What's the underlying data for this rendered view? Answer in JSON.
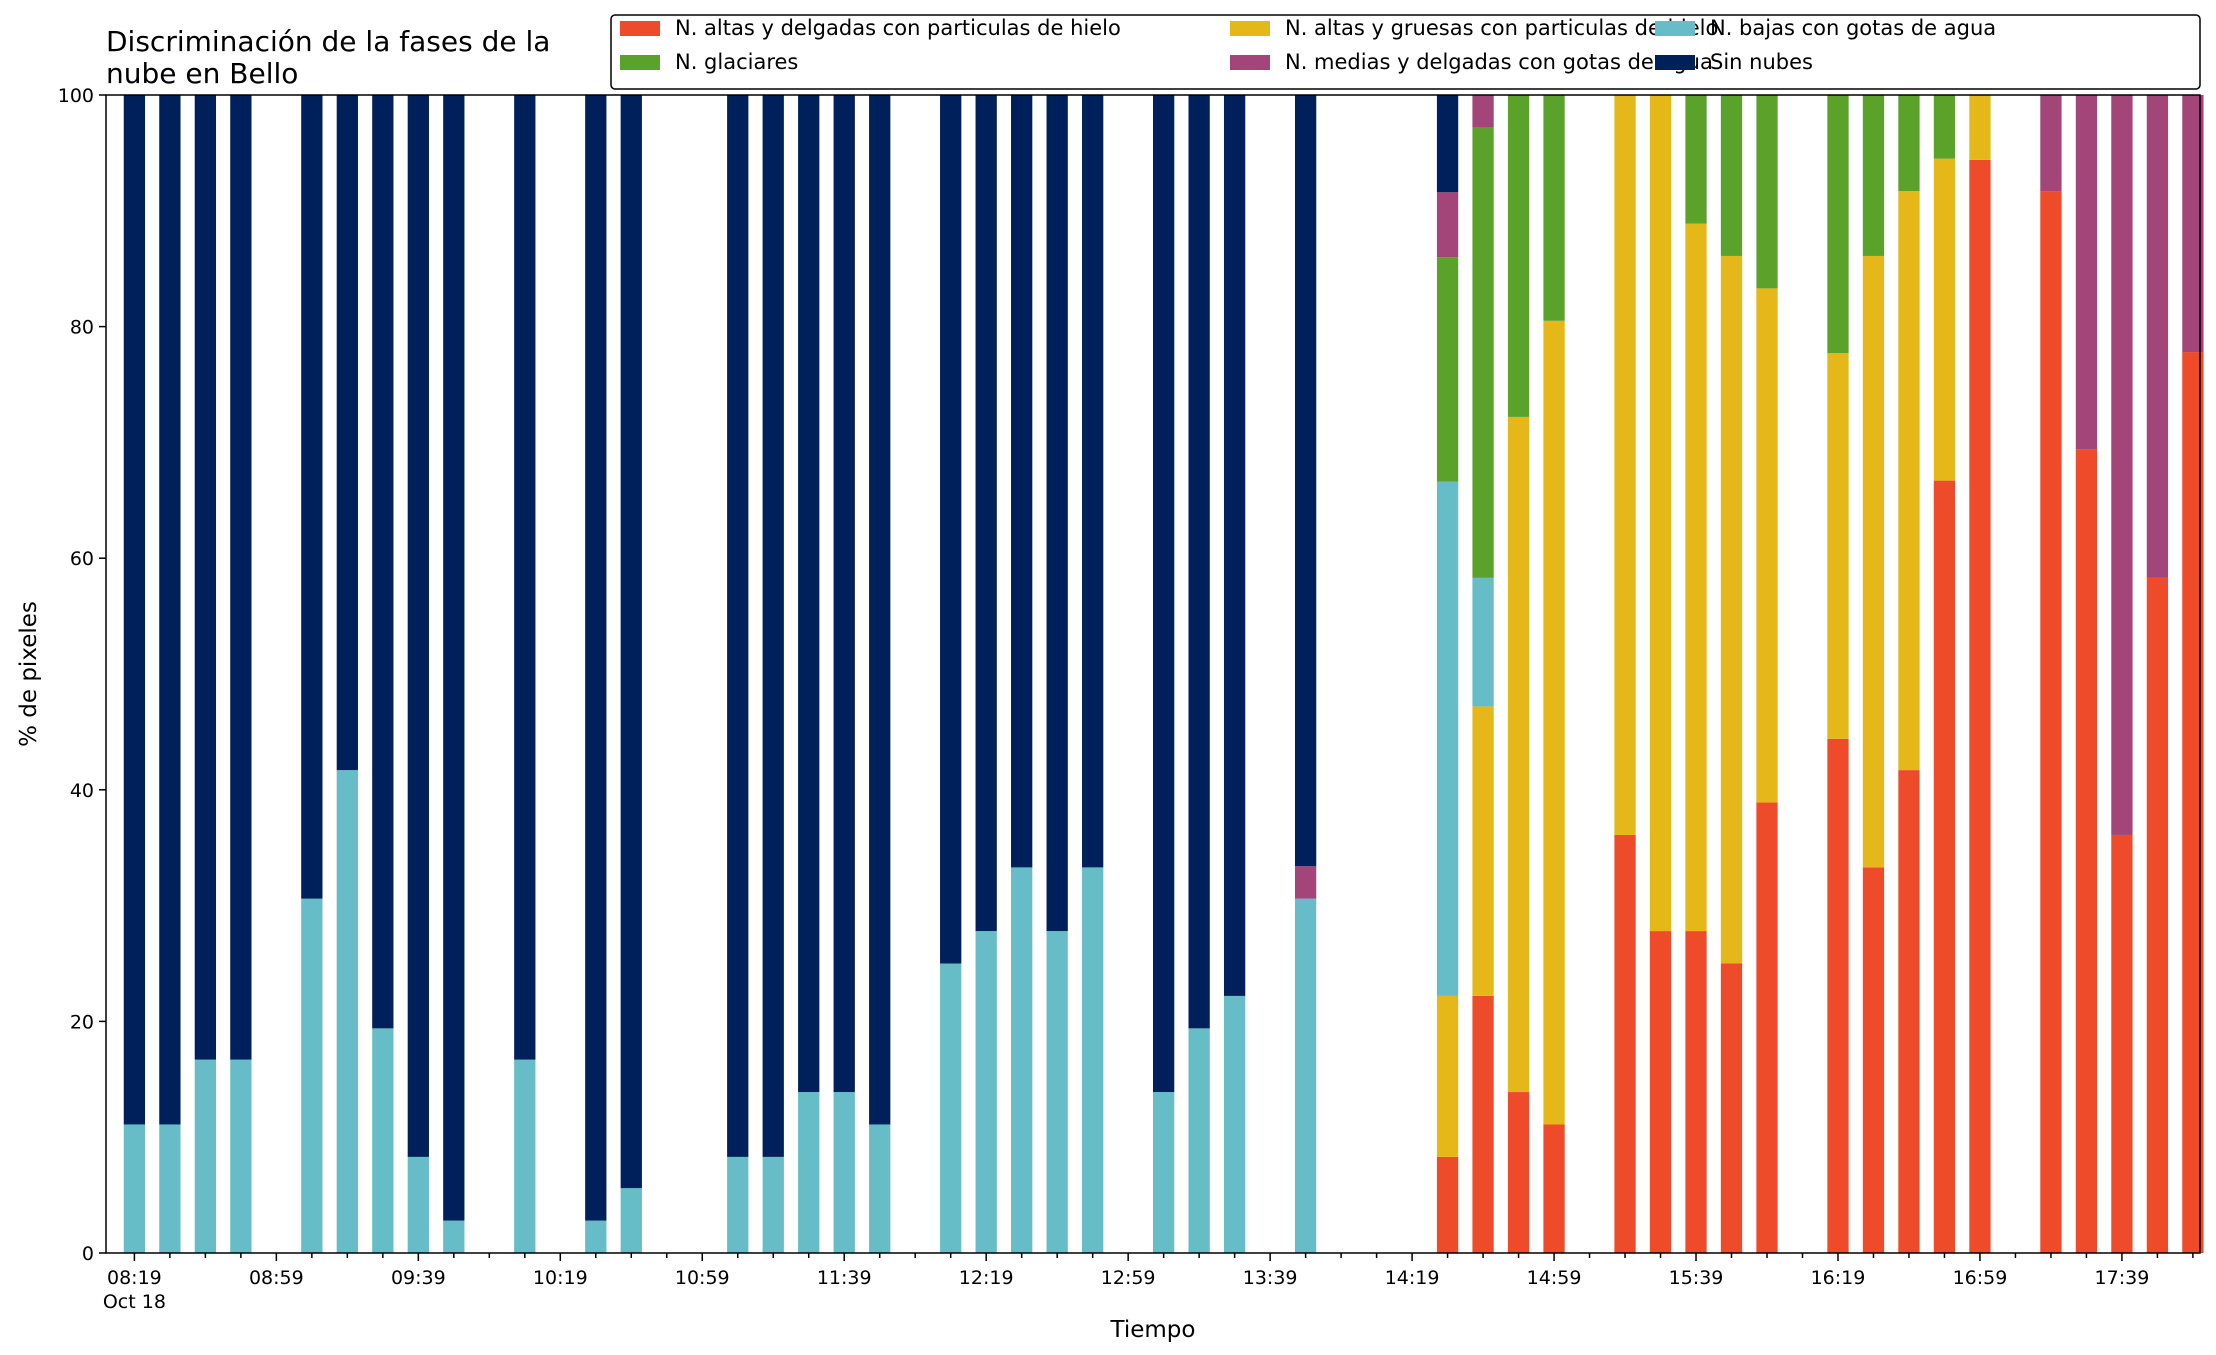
{
  "chart_data": {
    "type": "bar",
    "stacked": true,
    "title_lines": [
      "Discriminación de la fases de la",
      "nube en Bello"
    ],
    "xlabel": "Tiempo",
    "ylabel": "% de pixeles",
    "ylim": [
      0,
      100
    ],
    "yticks": [
      0,
      20,
      40,
      60,
      80,
      100
    ],
    "xlim": [
      "08:11",
      "18:01"
    ],
    "x_major_ticks": [
      "08:19",
      "08:59",
      "09:39",
      "10:19",
      "10:59",
      "11:39",
      "12:19",
      "12:59",
      "13:39",
      "14:19",
      "14:59",
      "15:39",
      "16:19",
      "16:59",
      "17:39"
    ],
    "x_date_label": "Oct 18",
    "x_tick_interval_minutes": 10,
    "x_tick_start": "08:19",
    "x_tick_end": "17:59",
    "legend_placement": "top-right",
    "grid": false,
    "series": [
      {
        "key": "thin_ice",
        "name": "N. altas y delgadas con particulas de hielo",
        "color": "#ee4b2b"
      },
      {
        "key": "thick_ice",
        "name": "N. altas y gruesas con particulas de hielo",
        "color": "#e5b719"
      },
      {
        "key": "low_water",
        "name": "N. bajas con gotas de agua",
        "color": "#66bdc8"
      },
      {
        "key": "glacial",
        "name": "N. glaciares",
        "color": "#5ba22b"
      },
      {
        "key": "mid_water",
        "name": "N. medias y delgadas con gotas de agua",
        "color": "#a4457a"
      },
      {
        "key": "clear",
        "name": "Sin nubes",
        "color": "#00205b"
      }
    ],
    "legend_order": [
      "thin_ice",
      "thick_ice",
      "low_water",
      "glacial",
      "mid_water",
      "clear"
    ],
    "stack_order": [
      "thin_ice",
      "thick_ice",
      "low_water",
      "glacial",
      "mid_water",
      "clear"
    ],
    "bars": [
      {
        "time": "08:19",
        "low_water": 11.1,
        "clear": 88.9
      },
      {
        "time": "08:29",
        "low_water": 11.1,
        "clear": 88.9
      },
      {
        "time": "08:39",
        "low_water": 16.7,
        "clear": 83.3
      },
      {
        "time": "08:49",
        "low_water": 16.7,
        "clear": 83.3
      },
      {
        "time": "09:09",
        "low_water": 30.6,
        "clear": 69.4
      },
      {
        "time": "09:19",
        "low_water": 41.7,
        "clear": 58.3
      },
      {
        "time": "09:29",
        "low_water": 19.4,
        "clear": 80.6
      },
      {
        "time": "09:39",
        "low_water": 8.3,
        "clear": 91.7
      },
      {
        "time": "09:49",
        "low_water": 2.8,
        "clear": 97.2
      },
      {
        "time": "10:09",
        "low_water": 16.7,
        "clear": 83.3
      },
      {
        "time": "10:29",
        "low_water": 2.8,
        "clear": 97.2
      },
      {
        "time": "10:39",
        "low_water": 5.6,
        "clear": 94.4
      },
      {
        "time": "11:09",
        "low_water": 8.3,
        "clear": 91.7
      },
      {
        "time": "11:19",
        "low_water": 8.3,
        "clear": 91.7
      },
      {
        "time": "11:29",
        "low_water": 13.9,
        "clear": 86.1
      },
      {
        "time": "11:39",
        "low_water": 13.9,
        "clear": 86.1
      },
      {
        "time": "11:49",
        "low_water": 11.1,
        "clear": 88.9
      },
      {
        "time": "12:09",
        "low_water": 25.0,
        "clear": 75.0
      },
      {
        "time": "12:19",
        "low_water": 27.8,
        "clear": 72.2
      },
      {
        "time": "12:29",
        "low_water": 33.3,
        "clear": 66.7
      },
      {
        "time": "12:39",
        "low_water": 27.8,
        "clear": 72.2
      },
      {
        "time": "12:49",
        "low_water": 33.3,
        "clear": 66.7
      },
      {
        "time": "13:09",
        "low_water": 13.9,
        "clear": 86.1
      },
      {
        "time": "13:19",
        "low_water": 19.4,
        "clear": 80.6
      },
      {
        "time": "13:29",
        "low_water": 22.2,
        "clear": 77.8
      },
      {
        "time": "13:49",
        "low_water": 30.6,
        "mid_water": 2.8,
        "clear": 66.6
      },
      {
        "time": "14:29",
        "thin_ice": 8.3,
        "thick_ice": 13.9,
        "low_water": 44.4,
        "glacial": 19.4,
        "mid_water": 5.6,
        "clear": 8.4
      },
      {
        "time": "14:39",
        "thin_ice": 22.2,
        "thick_ice": 25.0,
        "low_water": 11.1,
        "glacial": 38.9,
        "mid_water": 2.8
      },
      {
        "time": "14:49",
        "thin_ice": 13.9,
        "thick_ice": 58.3,
        "glacial": 27.8
      },
      {
        "time": "14:59",
        "thin_ice": 11.1,
        "thick_ice": 69.4,
        "glacial": 19.5
      },
      {
        "time": "15:19",
        "thin_ice": 36.1,
        "thick_ice": 63.9
      },
      {
        "time": "15:29",
        "thin_ice": 27.8,
        "thick_ice": 72.2
      },
      {
        "time": "15:39",
        "thin_ice": 27.8,
        "thick_ice": 61.1,
        "glacial": 11.1
      },
      {
        "time": "15:49",
        "thin_ice": 25.0,
        "thick_ice": 61.1,
        "glacial": 13.9
      },
      {
        "time": "15:59",
        "thin_ice": 38.9,
        "thick_ice": 44.4,
        "glacial": 16.7
      },
      {
        "time": "16:19",
        "thin_ice": 44.4,
        "thick_ice": 33.3,
        "glacial": 22.3
      },
      {
        "time": "16:29",
        "thin_ice": 33.3,
        "thick_ice": 52.8,
        "glacial": 13.9
      },
      {
        "time": "16:39",
        "thin_ice": 41.7,
        "thick_ice": 50.0,
        "glacial": 8.3
      },
      {
        "time": "16:49",
        "thin_ice": 66.7,
        "thick_ice": 27.8,
        "glacial": 5.5
      },
      {
        "time": "16:59",
        "thin_ice": 94.4,
        "thick_ice": 5.6
      },
      {
        "time": "17:19",
        "thin_ice": 91.7,
        "mid_water": 8.3
      },
      {
        "time": "17:29",
        "thin_ice": 69.4,
        "mid_water": 30.6
      },
      {
        "time": "17:39",
        "thin_ice": 36.1,
        "mid_water": 63.9
      },
      {
        "time": "17:49",
        "thin_ice": 58.3,
        "mid_water": 41.7
      },
      {
        "time": "17:59",
        "thin_ice": 77.8,
        "mid_water": 22.2
      }
    ]
  }
}
